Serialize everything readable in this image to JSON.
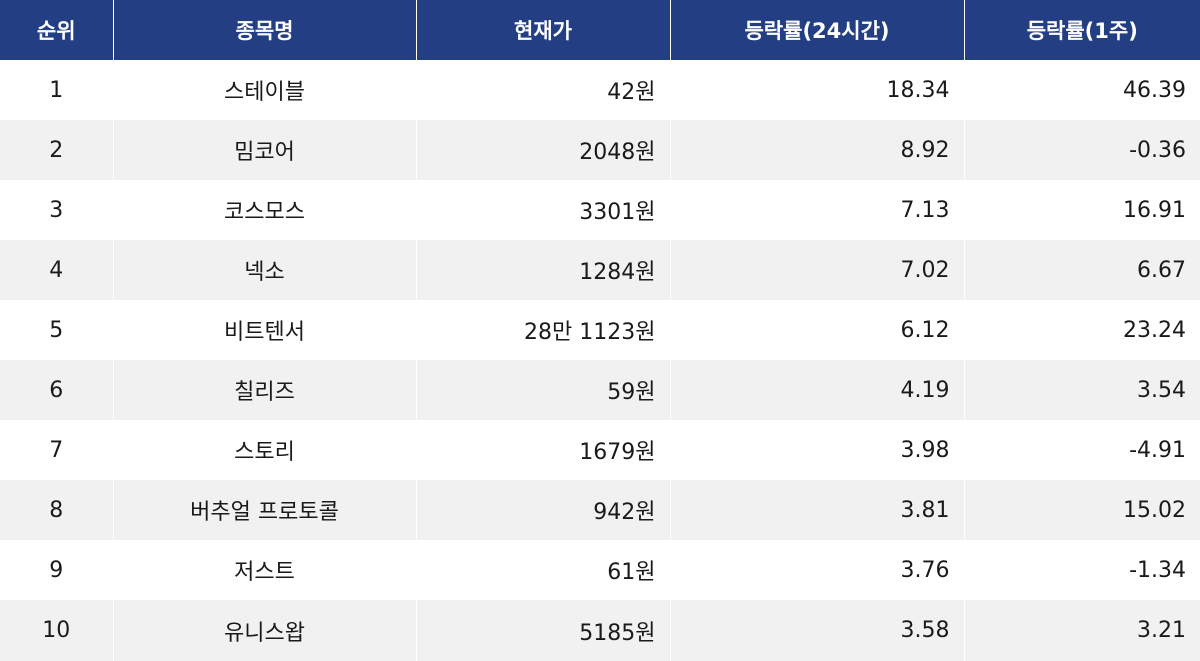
{
  "chart_data": {
    "type": "table",
    "columns": [
      "순위",
      "종목명",
      "현재가",
      "등락률(24시간)",
      "등락률(1주)"
    ],
    "rows": [
      [
        "1",
        "스테이블",
        "42원",
        "18.34",
        "46.39"
      ],
      [
        "2",
        "밈코어",
        "2048원",
        "8.92",
        "-0.36"
      ],
      [
        "3",
        "코스모스",
        "3301원",
        "7.13",
        "16.91"
      ],
      [
        "4",
        "넥소",
        "1284원",
        "7.02",
        "6.67"
      ],
      [
        "5",
        "비트텐서",
        "28만 1123원",
        "6.12",
        "23.24"
      ],
      [
        "6",
        "칠리즈",
        "59원",
        "4.19",
        "3.54"
      ],
      [
        "7",
        "스토리",
        "1679원",
        "3.98",
        "-4.91"
      ],
      [
        "8",
        "버추얼 프로토콜",
        "942원",
        "3.81",
        "15.02"
      ],
      [
        "9",
        "저스트",
        "61원",
        "3.76",
        "-1.34"
      ],
      [
        "10",
        "유니스왑",
        "5185원",
        "3.58",
        "3.21"
      ]
    ]
  },
  "colors": {
    "header_bg": "#233e82",
    "header_text": "#ffffff",
    "row_odd_bg": "#ffffff",
    "row_even_bg": "#f1f1f1"
  }
}
